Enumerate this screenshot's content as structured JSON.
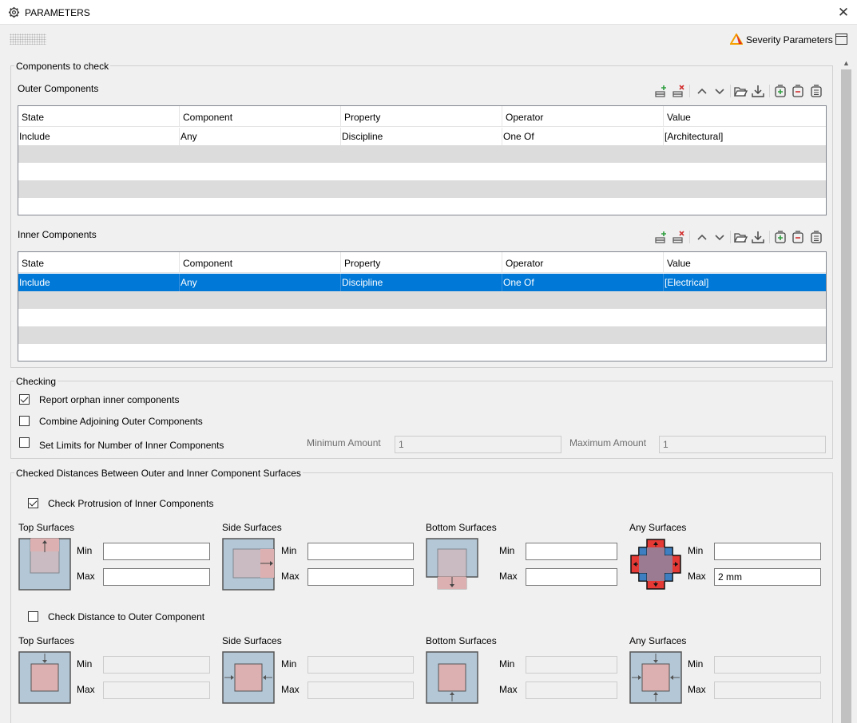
{
  "window": {
    "title": "PARAMETERS",
    "close_icon": "close-icon",
    "settings_icon": "gear-icon"
  },
  "header": {
    "severity_label": "Severity Parameters",
    "severity_icon": "warning-triangle-icon"
  },
  "components_group": {
    "legend": "Components to check",
    "outer": {
      "label": "Outer Components",
      "columns": [
        "State",
        "Component",
        "Property",
        "Operator",
        "Value"
      ],
      "rows": [
        [
          "Include",
          "Any",
          "Discipline",
          "One Of",
          "[Architectural]"
        ]
      ]
    },
    "inner": {
      "label": "Inner Components",
      "columns": [
        "State",
        "Component",
        "Property",
        "Operator",
        "Value"
      ],
      "rows": [
        [
          "Include",
          "Any",
          "Discipline",
          "One Of",
          "[Electrical]"
        ]
      ]
    }
  },
  "checking": {
    "legend": "Checking",
    "report_orphan": {
      "label": "Report orphan inner components",
      "checked": true
    },
    "combine_adjoining": {
      "label": "Combine Adjoining Outer Components",
      "checked": false
    },
    "set_limits": {
      "label": "Set Limits for Number of Inner Components",
      "checked": false
    },
    "min_amount_label": "Minimum Amount",
    "min_amount_value": "1",
    "max_amount_label": "Maximum Amount",
    "max_amount_value": "1"
  },
  "distances": {
    "legend": "Checked Distances Between Outer and Inner Component Surfaces",
    "protrusion": {
      "label": "Check Protrusion of Inner Components",
      "checked": true,
      "surfaces": [
        {
          "title": "Top Surfaces",
          "min_label": "Min",
          "max_label": "Max",
          "min": "",
          "max": ""
        },
        {
          "title": "Side Surfaces",
          "min_label": "Min",
          "max_label": "Max",
          "min": "",
          "max": ""
        },
        {
          "title": "Bottom Surfaces",
          "min_label": "Min",
          "max_label": "Max",
          "min": "",
          "max": ""
        },
        {
          "title": "Any Surfaces",
          "min_label": "Min",
          "max_label": "Max",
          "min": "",
          "max": "2 mm"
        }
      ]
    },
    "distance": {
      "label": "Check Distance to Outer Component",
      "checked": false,
      "surfaces": [
        {
          "title": "Top Surfaces",
          "min_label": "Min",
          "max_label": "Max",
          "min": "",
          "max": ""
        },
        {
          "title": "Side Surfaces",
          "min_label": "Min",
          "max_label": "Max",
          "min": "",
          "max": ""
        },
        {
          "title": "Bottom Surfaces",
          "min_label": "Min",
          "max_label": "Max",
          "min": "",
          "max": ""
        },
        {
          "title": "Any Surfaces",
          "min_label": "Min",
          "max_label": "Max",
          "min": "",
          "max": ""
        }
      ]
    }
  },
  "toolbar_icons": [
    "add-row-icon",
    "remove-row-icon",
    "move-up-icon",
    "move-down-icon",
    "open-folder-icon",
    "download-icon",
    "add-group-icon",
    "remove-group-icon",
    "clipboard-icon"
  ],
  "colors": {
    "selection": "#0078d7",
    "outer_box": "#b4c7d7",
    "inner_box": "#dcb0b0",
    "arrow_red": "#e53935",
    "arrow_blue": "#3d7fc1"
  }
}
